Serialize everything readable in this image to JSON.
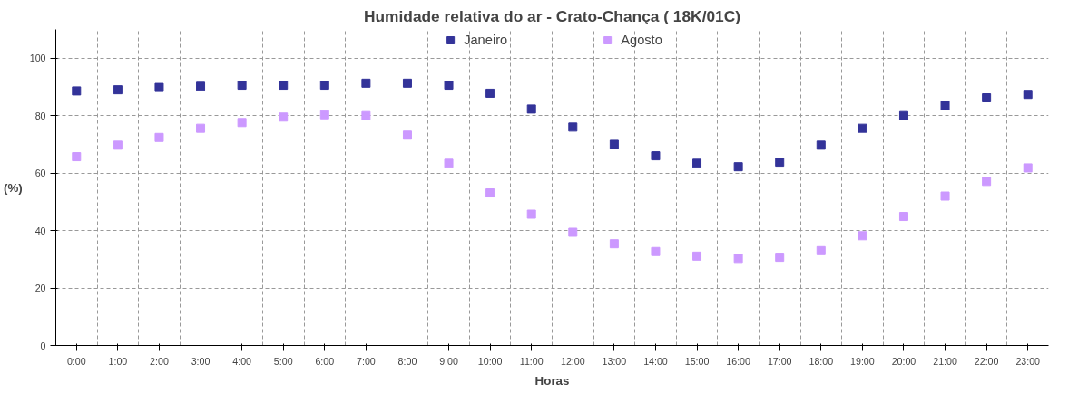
{
  "chart_data": {
    "type": "scatter",
    "title": "Humidade relativa do ar - Crato-Chança ( 18K/01C)",
    "xlabel": "Horas",
    "ylabel": "(%)",
    "categories": [
      "0:00",
      "1:00",
      "2:00",
      "3:00",
      "4:00",
      "5:00",
      "6:00",
      "7:00",
      "8:00",
      "9:00",
      "10:00",
      "11:00",
      "12:00",
      "13:00",
      "14:00",
      "15:00",
      "16:00",
      "17:00",
      "18:00",
      "19:00",
      "20:00",
      "21:00",
      "22:00",
      "23:00"
    ],
    "series": [
      {
        "name": "Janeiro",
        "color": "#333399",
        "values": [
          88.6,
          89,
          89.8,
          90.2,
          90.6,
          90.6,
          90.6,
          91.3,
          91.3,
          90.6,
          87.8,
          82.3,
          76,
          70,
          66,
          63.4,
          62.2,
          63.8,
          69.7,
          75.6,
          80,
          83.5,
          86.2,
          87.4
        ]
      },
      {
        "name": "Agosto",
        "color": "#cc99ff",
        "values": [
          65.7,
          69.7,
          72.4,
          75.6,
          77.6,
          79.5,
          80.3,
          80,
          73.2,
          63.4,
          53.1,
          45.7,
          39.4,
          35.4,
          32.7,
          31.1,
          30.3,
          30.7,
          33,
          38.2,
          44.9,
          52,
          57.1,
          61.8
        ]
      }
    ],
    "ylim": [
      0,
      110
    ],
    "yticks": [
      0,
      20,
      40,
      60,
      80,
      100
    ],
    "grid": true,
    "legend": "top",
    "marker": "square"
  }
}
